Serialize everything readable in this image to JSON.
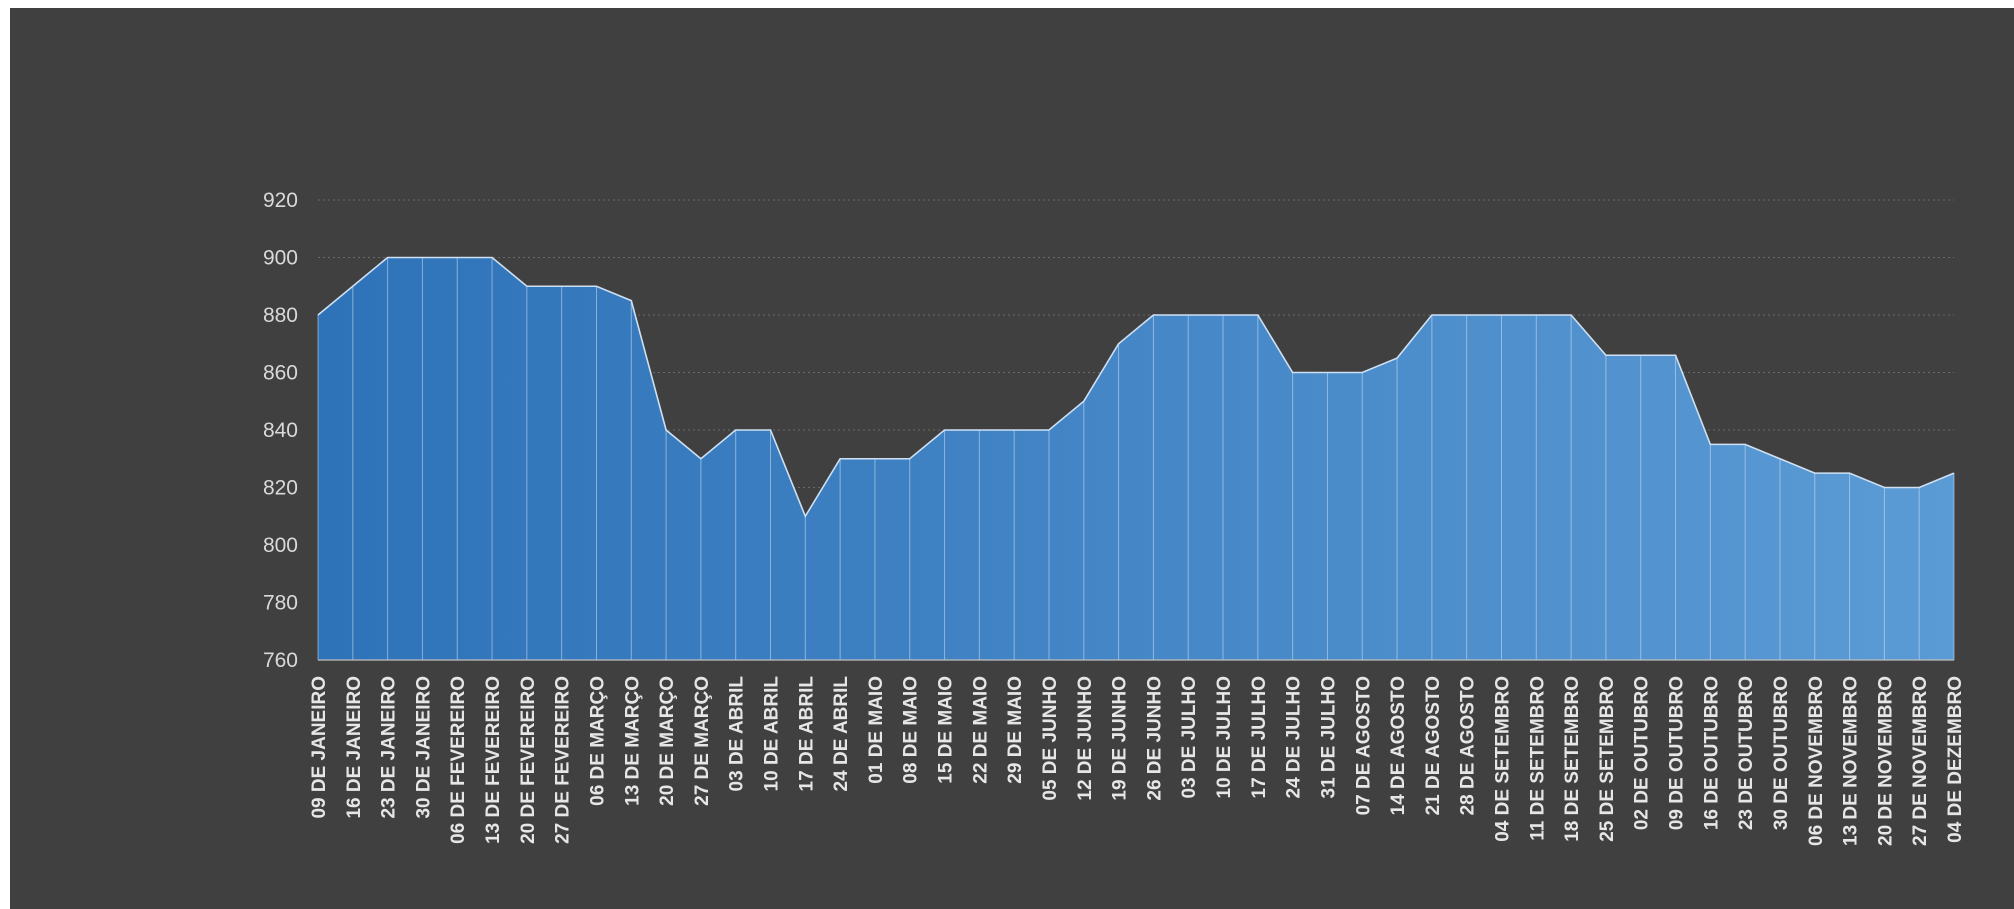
{
  "colors": {
    "background": "#404040",
    "fill_start": "#2e72b8",
    "fill_end": "#5b9bd5",
    "line": "#cfe0f2",
    "grid": "#6a6a6a",
    "tick_text": "#d9d9d9"
  },
  "chart_data": {
    "type": "area",
    "title": "",
    "xlabel": "",
    "ylabel": "",
    "ylim": [
      760,
      920
    ],
    "y_ticks": [
      760,
      780,
      800,
      820,
      840,
      860,
      880,
      900,
      920
    ],
    "grid": true,
    "legend": "none",
    "categories": [
      "09 DE JANEIRO",
      "16 DE JANEIRO",
      "23 DE JANEIRO",
      "30 DE JANEIRO",
      "06 DE FEVEREIRO",
      "13 DE FEVEREIRO",
      "20 DE FEVEREIRO",
      "27 DE FEVEREIRO",
      "06 DE MARÇO",
      "13 DE MARÇO",
      "20 DE MARÇO",
      "27 DE MARÇO",
      "03 DE ABRIL",
      "10 DE ABRIL",
      "17 DE ABRIL",
      "24 DE ABRIL",
      "01 DE MAIO",
      "08 DE MAIO",
      "15 DE MAIO",
      "22 DE MAIO",
      "29 DE MAIO",
      "05 DE JUNHO",
      "12 DE JUNHO",
      "19 DE JUNHO",
      "26 DE JUNHO",
      "03 DE JULHO",
      "10 DE JULHO",
      "17 DE JULHO",
      "24 DE JULHO",
      "31 DE JULHO",
      "07 DE AGOSTO",
      "14 DE AGOSTO",
      "21 DE AGOSTO",
      "28 DE AGOSTO",
      "04 DE SETEMBRO",
      "11 DE SETEMBRO",
      "18 DE SETEMBRO",
      "25 DE SETEMBRO",
      "02 DE OUTUBRO",
      "09 DE OUTUBRO",
      "16 DE OUTUBRO",
      "23 DE OUTUBRO",
      "30 DE OUTUBRO",
      "06 DE NOVEMBRO",
      "13 DE NOVEMBRO",
      "20 DE NOVEMBRO",
      "27 DE NOVEMBRO",
      "04 DE DEZEMBRO"
    ],
    "values": [
      880,
      890,
      900,
      900,
      900,
      900,
      890,
      890,
      890,
      885,
      840,
      830,
      840,
      840,
      810,
      830,
      830,
      830,
      840,
      840,
      840,
      840,
      850,
      870,
      880,
      880,
      880,
      880,
      860,
      860,
      860,
      865,
      880,
      880,
      880,
      880,
      880,
      866,
      866,
      866,
      835,
      835,
      830,
      825,
      825,
      820,
      820,
      825
    ]
  }
}
